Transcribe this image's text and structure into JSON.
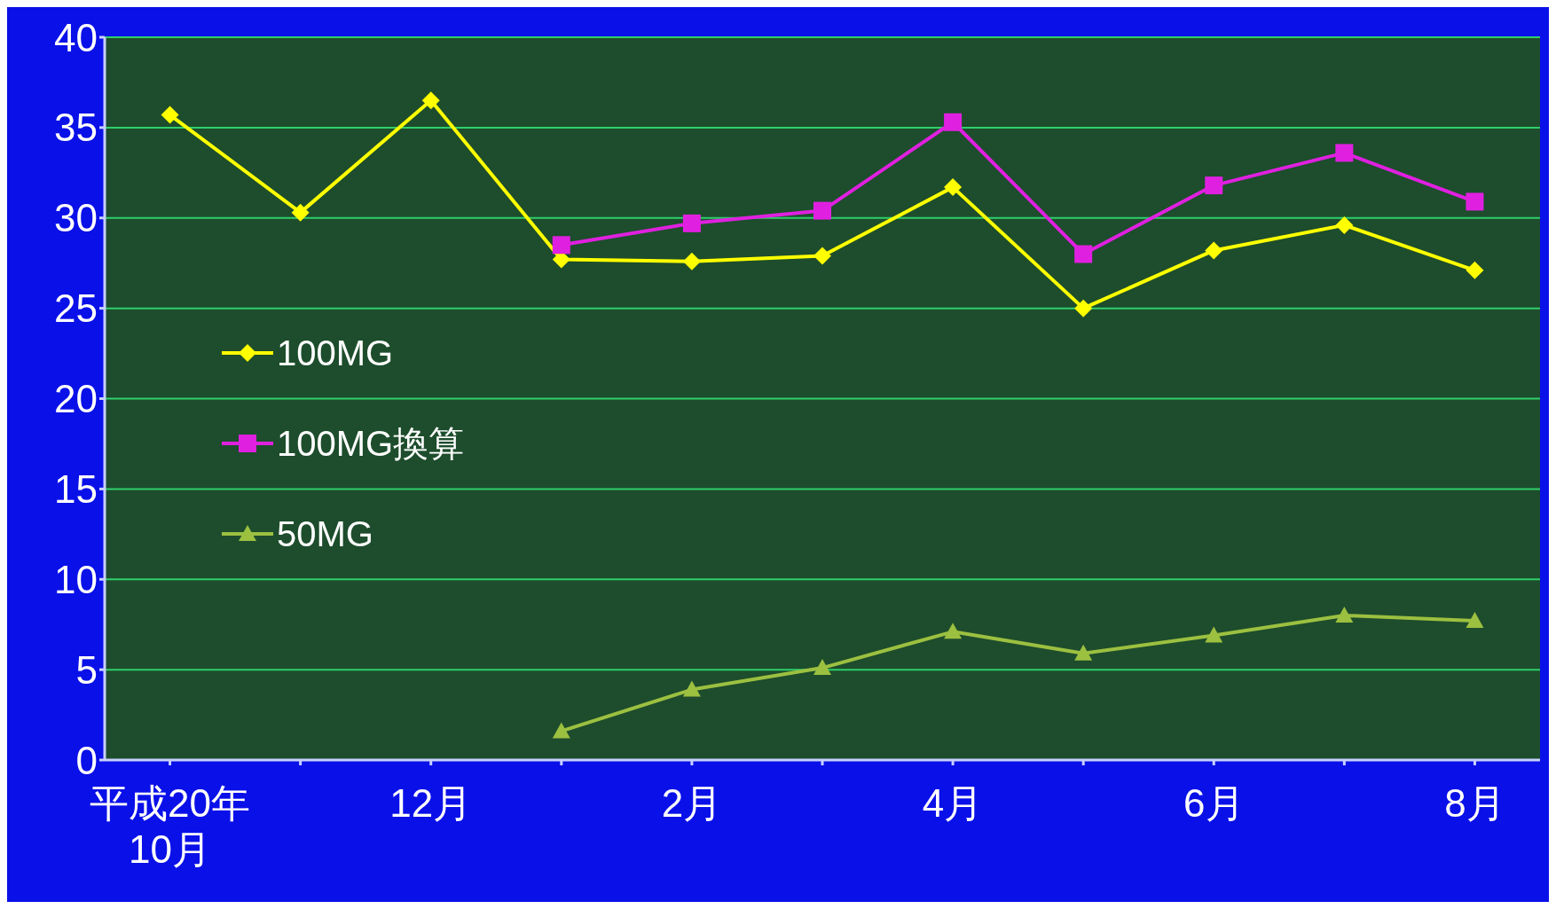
{
  "chart_data": {
    "type": "line",
    "categories": [
      "平成20年\n10月",
      null,
      "12月",
      null,
      "2月",
      null,
      "4月",
      null,
      "6月",
      null,
      "8月"
    ],
    "series": [
      {
        "name": "100MG",
        "color": "#ffff00",
        "marker": "diamond",
        "values": [
          35.7,
          30.3,
          36.5,
          27.7,
          27.6,
          27.9,
          31.7,
          25.0,
          28.2,
          29.6,
          27.1
        ]
      },
      {
        "name": "100MG換算",
        "color": "#e020e0",
        "marker": "square",
        "values": [
          null,
          null,
          null,
          28.5,
          29.7,
          30.4,
          35.3,
          28.0,
          31.8,
          33.6,
          30.9
        ]
      },
      {
        "name": "50MG",
        "color": "#9cc040",
        "marker": "triangle",
        "values": [
          null,
          null,
          null,
          1.6,
          3.9,
          5.1,
          7.1,
          5.9,
          6.9,
          8.0,
          7.7
        ]
      }
    ],
    "ylim": [
      0,
      40
    ],
    "yticks": [
      0,
      5,
      10,
      15,
      20,
      25,
      30,
      35,
      40
    ],
    "grid": "y",
    "legend": "left",
    "line_style": "solid"
  }
}
